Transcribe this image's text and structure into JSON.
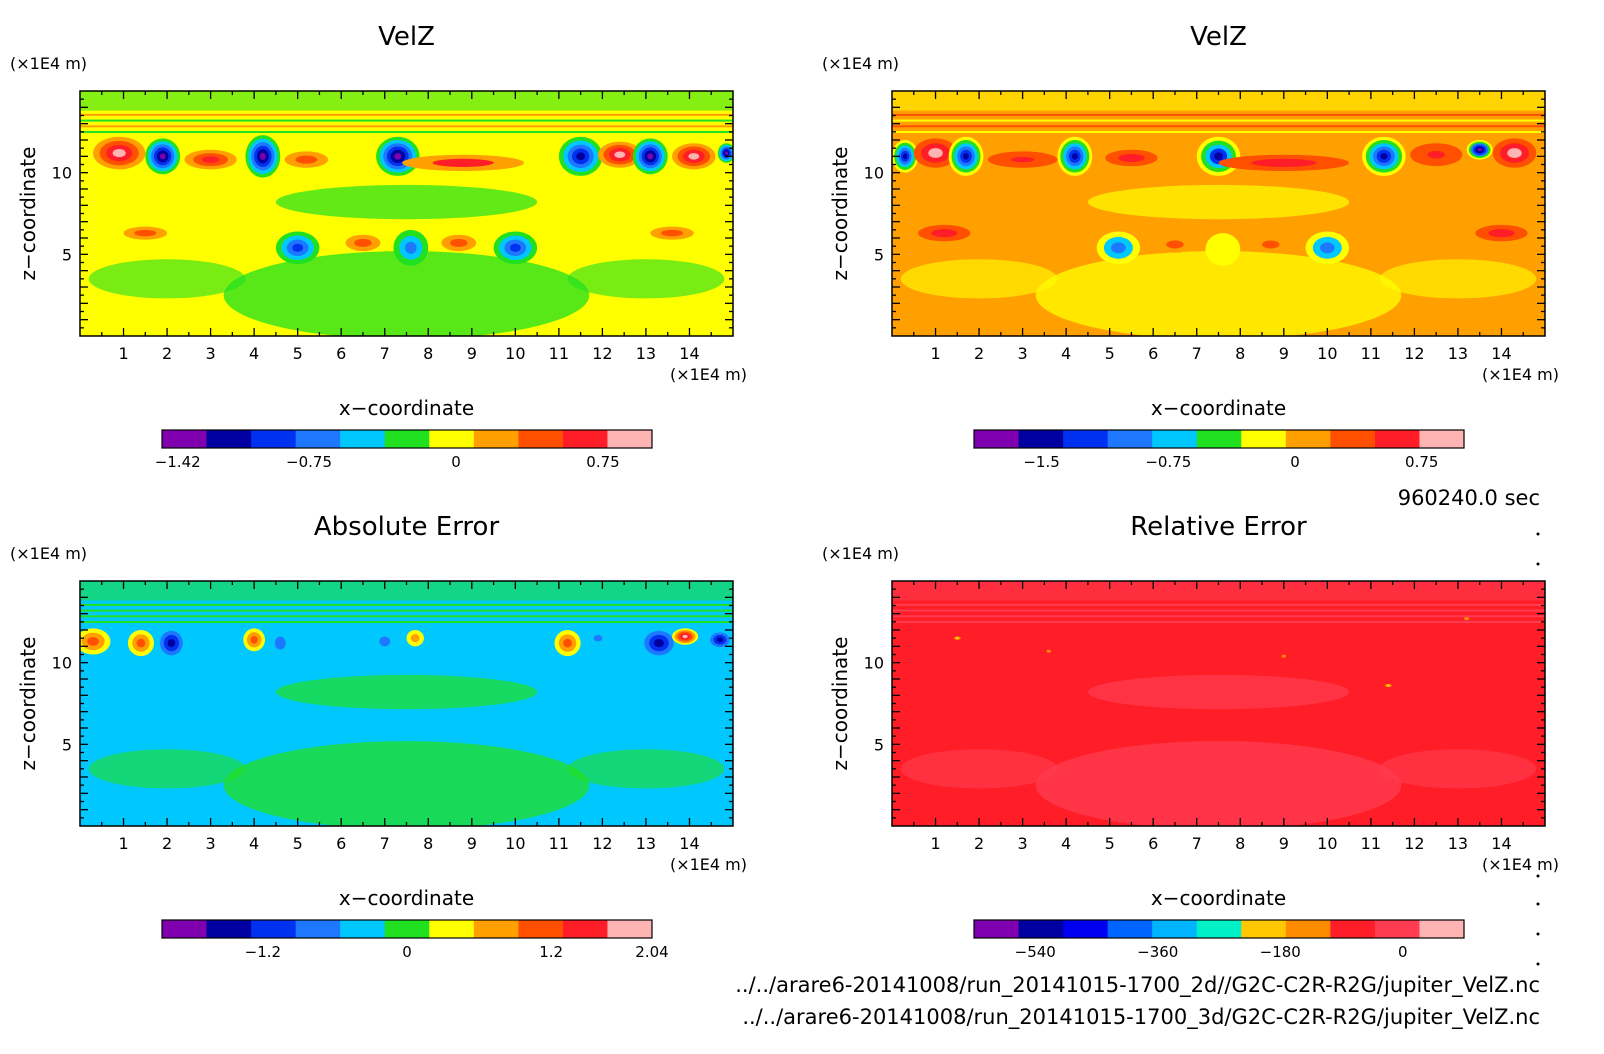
{
  "figure": {
    "time_label": "960240.0 sec",
    "files": [
      "../../arare6-20141008/run_20141015-1700_2d//G2C-C2R-R2G/jupiter_VelZ.nc",
      "../../arare6-20141008/run_20141015-1700_3d/G2C-C2R-R2G/jupiter_VelZ.nc"
    ]
  },
  "chart_data": [
    {
      "type": "heatmap",
      "title": "VelZ",
      "xlabel": "x−coordinate",
      "ylabel": "z−coordinate",
      "x_unit": "(×1E4 m)",
      "y_unit": "(×1E4 m)",
      "xlim": [
        0,
        15
      ],
      "ylim": [
        0,
        15
      ],
      "x_ticks": [
        1,
        2,
        3,
        4,
        5,
        6,
        7,
        8,
        9,
        10,
        11,
        12,
        13,
        14
      ],
      "y_ticks": [
        5,
        10
      ],
      "colorbar": {
        "range": [
          -1.5,
          1.0
        ],
        "tick_values": [
          -1.42,
          -0.75,
          0,
          0.75
        ],
        "tick_labels": [
          "−1.42",
          "−0.75",
          "0",
          "0.75"
        ],
        "colors": [
          "#8000b0",
          "#0000a0",
          "#0030f0",
          "#1e78ff",
          "#00c8ff",
          "#20e020",
          "#ffff00",
          "#ffa000",
          "#ff5000",
          "#ff1e28",
          "#ffb4b4"
        ]
      },
      "background_color": "#ffff00",
      "band_colors": [
        "#20e020",
        "#ffa000"
      ],
      "features": [
        {
          "x": 0.9,
          "z": 11.2,
          "rx": 0.6,
          "rz": 1.0,
          "v": 0.9
        },
        {
          "x": 1.9,
          "z": 11.0,
          "rx": 0.4,
          "rz": 1.1,
          "v": -1.3
        },
        {
          "x": 3.0,
          "z": 10.8,
          "rx": 0.6,
          "rz": 0.6,
          "v": 0.75
        },
        {
          "x": 4.2,
          "z": 11.0,
          "rx": 0.4,
          "rz": 1.3,
          "v": -1.4
        },
        {
          "x": 5.2,
          "z": 10.8,
          "rx": 0.5,
          "rz": 0.5,
          "v": 0.5
        },
        {
          "x": 7.3,
          "z": 11.0,
          "rx": 0.5,
          "rz": 1.2,
          "v": -1.3
        },
        {
          "x": 8.8,
          "z": 10.6,
          "rx": 1.4,
          "rz": 0.5,
          "v": 0.55
        },
        {
          "x": 11.5,
          "z": 11.0,
          "rx": 0.5,
          "rz": 1.2,
          "v": -1.2
        },
        {
          "x": 12.4,
          "z": 11.1,
          "rx": 0.5,
          "rz": 0.8,
          "v": 0.8
        },
        {
          "x": 13.1,
          "z": 11.0,
          "rx": 0.4,
          "rz": 1.1,
          "v": -1.3
        },
        {
          "x": 14.1,
          "z": 11.0,
          "rx": 0.5,
          "rz": 0.8,
          "v": 0.8
        },
        {
          "x": 14.85,
          "z": 11.2,
          "rx": 0.2,
          "rz": 0.6,
          "v": -1.3
        },
        {
          "x": 1.5,
          "z": 6.3,
          "rx": 0.5,
          "rz": 0.4,
          "v": 0.5
        },
        {
          "x": 5.0,
          "z": 5.4,
          "rx": 0.5,
          "rz": 1.0,
          "v": -1.0
        },
        {
          "x": 6.5,
          "z": 5.7,
          "rx": 0.4,
          "rz": 0.5,
          "v": 0.5
        },
        {
          "x": 7.6,
          "z": 5.4,
          "rx": 0.4,
          "rz": 1.1,
          "v": -0.6
        },
        {
          "x": 8.7,
          "z": 5.7,
          "rx": 0.4,
          "rz": 0.5,
          "v": 0.5
        },
        {
          "x": 10.0,
          "z": 5.4,
          "rx": 0.5,
          "rz": 1.0,
          "v": -1.0
        },
        {
          "x": 13.6,
          "z": 6.3,
          "rx": 0.5,
          "rz": 0.4,
          "v": 0.5
        }
      ]
    },
    {
      "type": "heatmap",
      "title": "VelZ",
      "xlabel": "x−coordinate",
      "ylabel": "z−coordinate",
      "x_unit": "(×1E4 m)",
      "y_unit": "(×1E4 m)",
      "xlim": [
        0,
        15
      ],
      "ylim": [
        0,
        15
      ],
      "x_ticks": [
        1,
        2,
        3,
        4,
        5,
        6,
        7,
        8,
        9,
        10,
        11,
        12,
        13,
        14
      ],
      "y_ticks": [
        5,
        10
      ],
      "colorbar": {
        "range": [
          -1.9,
          1.0
        ],
        "tick_values": [
          -1.5,
          -0.75,
          0,
          0.75
        ],
        "tick_labels": [
          "−1.5",
          "−0.75",
          "0",
          "0.75"
        ],
        "colors": [
          "#8000b0",
          "#0000a0",
          "#0030f0",
          "#1e78ff",
          "#00c8ff",
          "#20e020",
          "#ffff00",
          "#ffa000",
          "#ff5000",
          "#ff1e28",
          "#ffb4b4"
        ]
      },
      "background_color": "#ffa000",
      "band_colors": [
        "#ffff00",
        "#ff5000"
      ],
      "features": [
        {
          "x": 0.3,
          "z": 11.0,
          "rx": 0.3,
          "rz": 1.0,
          "v": -1.5
        },
        {
          "x": 1.0,
          "z": 11.2,
          "rx": 0.5,
          "rz": 0.9,
          "v": 0.9
        },
        {
          "x": 1.7,
          "z": 11.0,
          "rx": 0.4,
          "rz": 1.2,
          "v": -1.6
        },
        {
          "x": 3.0,
          "z": 10.8,
          "rx": 0.8,
          "rz": 0.5,
          "v": 0.7
        },
        {
          "x": 4.2,
          "z": 11.0,
          "rx": 0.4,
          "rz": 1.2,
          "v": -1.6
        },
        {
          "x": 5.5,
          "z": 10.9,
          "rx": 0.6,
          "rz": 0.5,
          "v": 0.5
        },
        {
          "x": 7.5,
          "z": 11.0,
          "rx": 0.5,
          "rz": 1.2,
          "v": -1.4
        },
        {
          "x": 9.0,
          "z": 10.6,
          "rx": 1.5,
          "rz": 0.5,
          "v": 0.6
        },
        {
          "x": 11.3,
          "z": 11.0,
          "rx": 0.5,
          "rz": 1.2,
          "v": -1.6
        },
        {
          "x": 12.5,
          "z": 11.1,
          "rx": 0.6,
          "rz": 0.7,
          "v": 0.7
        },
        {
          "x": 13.5,
          "z": 11.4,
          "rx": 0.3,
          "rz": 0.6,
          "v": -1.7
        },
        {
          "x": 14.3,
          "z": 11.2,
          "rx": 0.5,
          "rz": 0.9,
          "v": 0.9
        },
        {
          "x": 1.2,
          "z": 6.3,
          "rx": 0.6,
          "rz": 0.5,
          "v": 0.5
        },
        {
          "x": 5.2,
          "z": 5.4,
          "rx": 0.5,
          "rz": 1.0,
          "v": -0.9
        },
        {
          "x": 6.5,
          "z": 5.6,
          "rx": 0.4,
          "rz": 0.5,
          "v": 0.4
        },
        {
          "x": 7.6,
          "z": 5.3,
          "rx": 0.4,
          "rz": 1.0,
          "v": -0.3
        },
        {
          "x": 8.7,
          "z": 5.6,
          "rx": 0.4,
          "rz": 0.5,
          "v": 0.4
        },
        {
          "x": 10.0,
          "z": 5.4,
          "rx": 0.5,
          "rz": 1.0,
          "v": -0.9
        },
        {
          "x": 14.0,
          "z": 6.3,
          "rx": 0.6,
          "rz": 0.5,
          "v": 0.5
        }
      ]
    },
    {
      "type": "heatmap",
      "title": "Absolute Error",
      "xlabel": "x−coordinate",
      "ylabel": "z−coordinate",
      "x_unit": "(×1E4 m)",
      "y_unit": "(×1E4 m)",
      "xlim": [
        0,
        15
      ],
      "ylim": [
        0,
        15
      ],
      "x_ticks": [
        1,
        2,
        3,
        4,
        5,
        6,
        7,
        8,
        9,
        10,
        11,
        12,
        13,
        14
      ],
      "y_ticks": [
        5,
        10
      ],
      "colorbar": {
        "range": [
          -2.04,
          2.04
        ],
        "tick_values": [
          -1.2,
          0,
          1.2,
          2.04
        ],
        "tick_labels": [
          "−1.2",
          "0",
          "1.2",
          "2.04"
        ],
        "colors": [
          "#8000b0",
          "#0000a0",
          "#0030f0",
          "#1e78ff",
          "#00c8ff",
          "#20e020",
          "#ffff00",
          "#ffa000",
          "#ff5000",
          "#ff1e28",
          "#ffb4b4"
        ]
      },
      "background_color": "#00c8ff",
      "band_colors": [
        "#20e020",
        "#20e020"
      ],
      "features": [
        {
          "x": 0.3,
          "z": 11.3,
          "rx": 0.4,
          "rz": 0.8,
          "v": 1.0
        },
        {
          "x": 1.4,
          "z": 11.2,
          "rx": 0.3,
          "rz": 0.8,
          "v": 1.1
        },
        {
          "x": 2.1,
          "z": 11.2,
          "rx": 0.35,
          "rz": 1.0,
          "v": -1.6
        },
        {
          "x": 4.0,
          "z": 11.4,
          "rx": 0.25,
          "rz": 0.7,
          "v": 1.0
        },
        {
          "x": 4.6,
          "z": 11.2,
          "rx": 0.25,
          "rz": 0.8,
          "v": -0.7
        },
        {
          "x": 7.0,
          "z": 11.3,
          "rx": 0.25,
          "rz": 0.6,
          "v": -0.7
        },
        {
          "x": 7.7,
          "z": 11.5,
          "rx": 0.2,
          "rz": 0.5,
          "v": 0.9
        },
        {
          "x": 11.2,
          "z": 11.2,
          "rx": 0.3,
          "rz": 0.8,
          "v": 1.2
        },
        {
          "x": 11.9,
          "z": 11.5,
          "rx": 0.2,
          "rz": 0.4,
          "v": -0.7
        },
        {
          "x": 13.3,
          "z": 11.2,
          "rx": 0.45,
          "rz": 1.0,
          "v": -1.6
        },
        {
          "x": 13.9,
          "z": 11.6,
          "rx": 0.3,
          "rz": 0.5,
          "v": 1.7
        },
        {
          "x": 14.7,
          "z": 11.4,
          "rx": 0.3,
          "rz": 0.6,
          "v": -1.5
        }
      ]
    },
    {
      "type": "heatmap",
      "title": "Relative Error",
      "xlabel": "x−coordinate",
      "ylabel": "z−coordinate",
      "x_unit": "(×1E4 m)",
      "y_unit": "(×1E4 m)",
      "xlim": [
        0,
        15
      ],
      "ylim": [
        0,
        15
      ],
      "x_ticks": [
        1,
        2,
        3,
        4,
        5,
        6,
        7,
        8,
        9,
        10,
        11,
        12,
        13,
        14
      ],
      "y_ticks": [
        5,
        10
      ],
      "colorbar": {
        "range": [
          -630,
          90
        ],
        "tick_values": [
          -540,
          -360,
          -180,
          0
        ],
        "tick_labels": [
          "−540",
          "−360",
          "−180",
          "0"
        ],
        "colors": [
          "#8000b0",
          "#0000a0",
          "#0000f0",
          "#0064ff",
          "#00b4ff",
          "#00f0c8",
          "#ffc800",
          "#ff8c00",
          "#ff1e28",
          "#ff3c50",
          "#ffb4b4"
        ]
      },
      "background_color": "#ff1e28",
      "band_colors": [
        "#ff3c50",
        "#ff3c50"
      ],
      "features": [
        {
          "x": 1.5,
          "z": 11.5,
          "rx": 0.12,
          "rz": 0.1,
          "v": -200
        },
        {
          "x": 3.6,
          "z": 10.7,
          "rx": 0.1,
          "rz": 0.08,
          "v": -130
        },
        {
          "x": 9.0,
          "z": 10.4,
          "rx": 0.1,
          "rz": 0.08,
          "v": -130
        },
        {
          "x": 11.4,
          "z": 8.6,
          "rx": 0.12,
          "rz": 0.1,
          "v": -200
        },
        {
          "x": 13.2,
          "z": 12.7,
          "rx": 0.12,
          "rz": 0.08,
          "v": -130
        }
      ]
    }
  ]
}
